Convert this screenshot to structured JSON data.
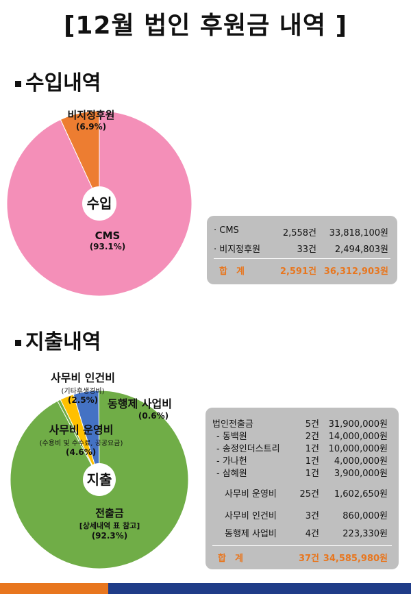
{
  "title": "[12월 법인 후원금 내역 ]",
  "income": {
    "heading": "수입내역",
    "center": "수입",
    "labels": {
      "nondesignated": {
        "name": "비지정후원",
        "pct": "(6.9%)"
      },
      "cms": {
        "name": "CMS",
        "pct": "(93.1%)"
      }
    },
    "table": {
      "rows": [
        {
          "item": "· CMS",
          "count": "2,558건",
          "amount": "33,818,100원"
        },
        {
          "item": "· 비지정후원",
          "count": "33건",
          "amount": "2,494,803원"
        }
      ],
      "total": {
        "item": "합　계",
        "count": "2,591건",
        "amount": "36,312,903원"
      }
    }
  },
  "expense": {
    "heading": "지출내역",
    "center": "지출",
    "labels": {
      "labor": {
        "name": "사무비 인건비",
        "sub": "(기타후생경비)",
        "pct": "(2.5%)"
      },
      "project": {
        "name": "동행제 사업비",
        "pct": "(0.6%)"
      },
      "ops": {
        "name": "사무비 운영비",
        "sub": "(수용비 및 수수료, 공공요금)",
        "pct": "(4.6%)"
      },
      "transfer": {
        "name": "전출금",
        "sub": "[상세내역 표 참고]",
        "pct": "(92.3%)"
      }
    },
    "table": {
      "rows": [
        {
          "item": "법인전출금",
          "count": "5건",
          "amount": "31,900,000원"
        },
        {
          "item": "- 동백원",
          "count": "2건",
          "amount": "14,000,000원"
        },
        {
          "item": "- 송정인더스트리",
          "count": "1건",
          "amount": "10,000,000원"
        },
        {
          "item": "- 가나헌",
          "count": "1건",
          "amount": "4,000,000원"
        },
        {
          "item": "- 삼혜원",
          "count": "1건",
          "amount": "3,900,000원"
        },
        {
          "item": "사무비 운영비",
          "count": "25건",
          "amount": "1,602,650원"
        },
        {
          "item": "사무비 인건비",
          "count": "3건",
          "amount": "860,000원"
        },
        {
          "item": "동행제 사업비",
          "count": "4건",
          "amount": "223,330원"
        }
      ],
      "total": {
        "item": "합　계",
        "count": "37건",
        "amount": "34,585,980원"
      }
    }
  },
  "chart_data": [
    {
      "type": "pie",
      "title": "수입",
      "categories": [
        "비지정후원",
        "CMS"
      ],
      "values": [
        6.9,
        93.1
      ],
      "colors": [
        "#ed7d31",
        "#f48fb8"
      ]
    },
    {
      "type": "pie",
      "title": "지출",
      "categories": [
        "동행제 사업비",
        "사무비 인건비",
        "사무비 운영비",
        "전출금"
      ],
      "values": [
        0.6,
        2.5,
        4.6,
        92.3
      ],
      "colors": [
        "#70ad47",
        "#ffc000",
        "#4472c4",
        "#70ad47"
      ]
    }
  ]
}
